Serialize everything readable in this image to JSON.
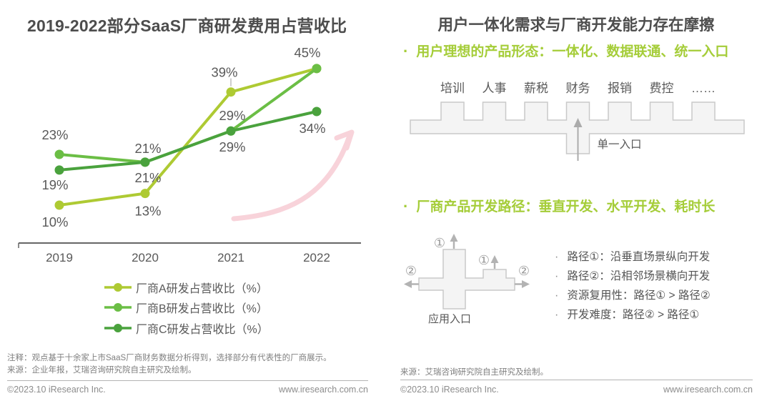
{
  "page": {
    "left": {
      "title": "2019-2022部分SaaS厂商研发费用占营收比",
      "note_line1": "注释：观点基于十余家上市SaaS厂商财务数据分析得到，选择部分有代表性的厂商展示。",
      "note_line2": "来源：企业年报，艾瑞咨询研究院自主研究及绘制。",
      "copyright": "©2023.10 iResearch Inc.",
      "website": "www.iresearch.com.cn"
    },
    "right": {
      "title": "用户一体化需求与厂商开发能力存在摩擦",
      "point1": "用户理想的产品形态：一体化、数据联通、统一入口",
      "point2": "厂商产品开发路径：垂直开发、水平开发、耗时长",
      "integration": {
        "modules": [
          "培训",
          "人事",
          "薪税",
          "财务",
          "报销",
          "费控",
          "……"
        ],
        "entry_label": "单一入口"
      },
      "paths_diagram": {
        "path1_badge": "①",
        "path2_badge": "②",
        "entry_label": "应用入口",
        "notes": [
          "路径①：沿垂直场景纵向开发",
          "路径②：沿相邻场景横向开发",
          "资源复用性：路径① > 路径②",
          "开发难度：路径② > 路径①"
        ]
      },
      "source": "来源：艾瑞咨询研究院自主研究及绘制。",
      "copyright": "©2023.10 iResearch Inc.",
      "website": "www.iresearch.com.cn"
    }
  },
  "chart_data": {
    "type": "line",
    "title": "2019-2022部分SaaS厂商研发费用占营收比",
    "categories": [
      "2019",
      "2020",
      "2021",
      "2022"
    ],
    "unit": "%",
    "series": [
      {
        "name": "厂商A研发占营收比（%）",
        "color": "#aeca33",
        "values": [
          10,
          13,
          39,
          45
        ]
      },
      {
        "name": "厂商B研发占营收比（%）",
        "color": "#6bbe45",
        "values": [
          23,
          21,
          29,
          45
        ]
      },
      {
        "name": "厂商C研发占营收比（%）",
        "color": "#4aa23d",
        "values": [
          19,
          21,
          29,
          34
        ]
      }
    ],
    "ylim": [
      10,
      45
    ],
    "xlabel": "",
    "ylabel": "",
    "grid": false,
    "legend_position": "bottom",
    "annotations": [
      "rising-trend-arrow"
    ]
  }
}
